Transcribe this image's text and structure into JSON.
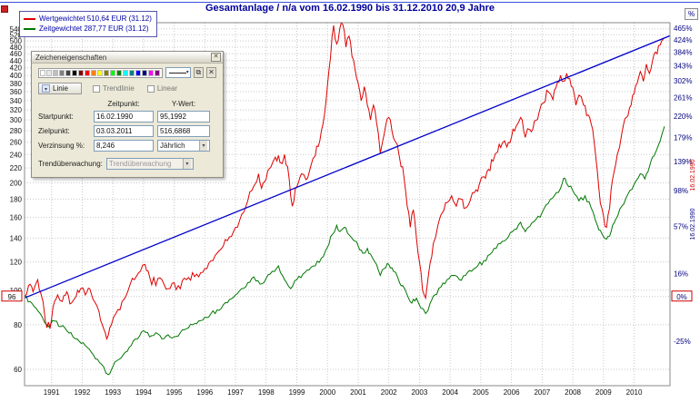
{
  "window": {
    "title": "Gesamtanlage / n/a vom 16.02.1990 bis 31.12.2010 20,9 Jahre"
  },
  "axis_toggle": "%",
  "legend": {
    "items": [
      {
        "label": "Wertgewichtet 510,64 EUR (31.12)",
        "color": "#dd0000"
      },
      {
        "label": "Zeitgewichtet 287,77 EUR (31.12)",
        "color": "#007700"
      }
    ]
  },
  "dialog": {
    "title": "Zeicheneigenschaften",
    "close_label": "✕",
    "copy_icon": "⧉",
    "delete_icon": "✕",
    "arrow": "▾",
    "line_type_label": "Linie",
    "trendline_label": "Trendlinie",
    "linear_label": "Linear",
    "col_time_label": "Zeitpunkt:",
    "col_value_label": "Y-Wert:",
    "start_label": "Startpunkt:",
    "start_date": "16.02.1990",
    "start_value": "95,1992",
    "end_label": "Zielpunkt:",
    "end_date": "03.03.2011",
    "end_value": "516,6868",
    "interest_label": "Verzinsung %:",
    "interest_value": "8,246",
    "interest_period": "Jährlich",
    "monitor_label": "Trendüberwachung:",
    "monitor_value": "Trendüberwachung",
    "swatches": [
      "#ffffff",
      "#e8e8e8",
      "#c0c0c0",
      "#808080",
      "#404040",
      "#000000",
      "#800000",
      "#ff0000",
      "#ff8000",
      "#ffff00",
      "#808000",
      "#00ff00",
      "#008000",
      "#00ffff",
      "#008080",
      "#0000ff",
      "#000080",
      "#ff00ff",
      "#800080"
    ]
  },
  "chart_data": {
    "type": "line",
    "scale_y": "log",
    "xlim": [
      1990.12,
      2011.17
    ],
    "ylim": [
      54,
      562
    ],
    "x_ticks": [
      1991,
      1992,
      1993,
      1994,
      1995,
      1996,
      1997,
      1998,
      1999,
      2000,
      2001,
      2002,
      2003,
      2004,
      2005,
      2006,
      2007,
      2008,
      2009,
      2010
    ],
    "y_ticks_left": [
      540,
      520,
      500,
      480,
      460,
      440,
      420,
      400,
      380,
      360,
      340,
      320,
      300,
      280,
      260,
      240,
      220,
      200,
      180,
      160,
      140,
      120,
      100,
      80,
      60
    ],
    "y_ticks_right_pct": [
      465,
      424,
      384,
      343,
      302,
      261,
      220,
      179,
      139,
      98,
      57,
      16,
      -25
    ],
    "base_value": 96,
    "base_left_label": "96",
    "base_right_label": "0%",
    "base_date_label": "16.02.1990",
    "grid": true,
    "series": [
      {
        "name": "Wertgewichtet",
        "color": "#dd0000",
        "end_value": "510,64",
        "jitter": 0.035,
        "points": [
          [
            1990.12,
            96
          ],
          [
            1990.25,
            103
          ],
          [
            1990.4,
            99
          ],
          [
            1990.55,
            107
          ],
          [
            1990.65,
            98
          ],
          [
            1990.8,
            82
          ],
          [
            1990.95,
            78
          ],
          [
            1991.05,
            90
          ],
          [
            1991.2,
            97
          ],
          [
            1991.35,
            93
          ],
          [
            1991.5,
            99
          ],
          [
            1991.65,
            92
          ],
          [
            1991.8,
            96
          ],
          [
            1991.95,
            101
          ],
          [
            1992.1,
            97
          ],
          [
            1992.25,
            101
          ],
          [
            1992.4,
            93
          ],
          [
            1992.55,
            87
          ],
          [
            1992.7,
            78
          ],
          [
            1992.8,
            73
          ],
          [
            1992.95,
            80
          ],
          [
            1993.1,
            86
          ],
          [
            1993.3,
            93
          ],
          [
            1993.5,
            100
          ],
          [
            1993.7,
            107
          ],
          [
            1993.9,
            113
          ],
          [
            1994.05,
            118
          ],
          [
            1994.2,
            109
          ],
          [
            1994.4,
            103
          ],
          [
            1994.6,
            107
          ],
          [
            1994.8,
            101
          ],
          [
            1995.0,
            105
          ],
          [
            1995.2,
            101
          ],
          [
            1995.4,
            107
          ],
          [
            1995.6,
            112
          ],
          [
            1995.8,
            109
          ],
          [
            1996.0,
            115
          ],
          [
            1996.2,
            121
          ],
          [
            1996.4,
            127
          ],
          [
            1996.6,
            133
          ],
          [
            1996.8,
            141
          ],
          [
            1997.0,
            150
          ],
          [
            1997.2,
            163
          ],
          [
            1997.4,
            178
          ],
          [
            1997.6,
            196
          ],
          [
            1997.75,
            212
          ],
          [
            1997.85,
            193
          ],
          [
            1998.0,
            205
          ],
          [
            1998.15,
            221
          ],
          [
            1998.3,
            236
          ],
          [
            1998.45,
            228
          ],
          [
            1998.6,
            240
          ],
          [
            1998.75,
            205
          ],
          [
            1998.85,
            172
          ],
          [
            1999.0,
            195
          ],
          [
            1999.15,
            212
          ],
          [
            1999.3,
            204
          ],
          [
            1999.45,
            222
          ],
          [
            1999.6,
            238
          ],
          [
            1999.75,
            262
          ],
          [
            1999.9,
            310
          ],
          [
            2000.0,
            375
          ],
          [
            2000.1,
            450
          ],
          [
            2000.2,
            552
          ],
          [
            2000.3,
            490
          ],
          [
            2000.4,
            540
          ],
          [
            2000.5,
            555
          ],
          [
            2000.6,
            480
          ],
          [
            2000.7,
            515
          ],
          [
            2000.8,
            452
          ],
          [
            2000.9,
            415
          ],
          [
            2001.0,
            380
          ],
          [
            2001.1,
            340
          ],
          [
            2001.2,
            372
          ],
          [
            2001.3,
            330
          ],
          [
            2001.4,
            300
          ],
          [
            2001.5,
            330
          ],
          [
            2001.6,
            295
          ],
          [
            2001.72,
            242
          ],
          [
            2001.8,
            262
          ],
          [
            2001.9,
            290
          ],
          [
            2002.0,
            305
          ],
          [
            2002.1,
            280
          ],
          [
            2002.2,
            262
          ],
          [
            2002.35,
            235
          ],
          [
            2002.5,
            205
          ],
          [
            2002.6,
            172
          ],
          [
            2002.7,
            150
          ],
          [
            2002.8,
            168
          ],
          [
            2002.9,
            140
          ],
          [
            2003.0,
            120
          ],
          [
            2003.1,
            100
          ],
          [
            2003.2,
            95
          ],
          [
            2003.3,
            112
          ],
          [
            2003.45,
            135
          ],
          [
            2003.6,
            152
          ],
          [
            2003.75,
            165
          ],
          [
            2003.9,
            176
          ],
          [
            2004.05,
            184
          ],
          [
            2004.2,
            172
          ],
          [
            2004.35,
            180
          ],
          [
            2004.5,
            170
          ],
          [
            2004.65,
            178
          ],
          [
            2004.8,
            188
          ],
          [
            2004.95,
            198
          ],
          [
            2005.1,
            208
          ],
          [
            2005.25,
            218
          ],
          [
            2005.4,
            230
          ],
          [
            2005.55,
            244
          ],
          [
            2005.7,
            258
          ],
          [
            2005.85,
            252
          ],
          [
            2006.0,
            268
          ],
          [
            2006.15,
            288
          ],
          [
            2006.3,
            305
          ],
          [
            2006.45,
            268
          ],
          [
            2006.6,
            282
          ],
          [
            2006.75,
            298
          ],
          [
            2006.9,
            315
          ],
          [
            2007.05,
            335
          ],
          [
            2007.2,
            360
          ],
          [
            2007.35,
            342
          ],
          [
            2007.5,
            382
          ],
          [
            2007.6,
            400
          ],
          [
            2007.7,
            385
          ],
          [
            2007.8,
            405
          ],
          [
            2007.9,
            392
          ],
          [
            2008.0,
            370
          ],
          [
            2008.1,
            330
          ],
          [
            2008.2,
            352
          ],
          [
            2008.35,
            330
          ],
          [
            2008.5,
            310
          ],
          [
            2008.65,
            282
          ],
          [
            2008.8,
            215
          ],
          [
            2008.9,
            175
          ],
          [
            2009.0,
            162
          ],
          [
            2009.1,
            150
          ],
          [
            2009.2,
            170
          ],
          [
            2009.3,
            205
          ],
          [
            2009.45,
            240
          ],
          [
            2009.6,
            275
          ],
          [
            2009.75,
            305
          ],
          [
            2009.9,
            330
          ],
          [
            2010.0,
            355
          ],
          [
            2010.1,
            380
          ],
          [
            2010.2,
            410
          ],
          [
            2010.3,
            385
          ],
          [
            2010.4,
            430
          ],
          [
            2010.5,
            405
          ],
          [
            2010.6,
            440
          ],
          [
            2010.7,
            465
          ],
          [
            2010.8,
            485
          ],
          [
            2010.9,
            500
          ],
          [
            2010.99,
            510.64
          ]
        ]
      },
      {
        "name": "Zeitgewichtet",
        "color": "#007700",
        "end_value": "287,77",
        "jitter": 0.016,
        "points": [
          [
            1990.12,
            96
          ],
          [
            1990.3,
            93
          ],
          [
            1990.5,
            89
          ],
          [
            1990.7,
            84
          ],
          [
            1990.9,
            79
          ],
          [
            1991.1,
            82
          ],
          [
            1991.3,
            79
          ],
          [
            1991.5,
            77
          ],
          [
            1991.7,
            74
          ],
          [
            1991.9,
            72
          ],
          [
            1992.1,
            70
          ],
          [
            1992.3,
            67
          ],
          [
            1992.5,
            64
          ],
          [
            1992.7,
            61
          ],
          [
            1992.85,
            58
          ],
          [
            1993.0,
            61
          ],
          [
            1993.2,
            64
          ],
          [
            1993.4,
            67
          ],
          [
            1993.6,
            70
          ],
          [
            1993.8,
            73
          ],
          [
            1994.0,
            77
          ],
          [
            1994.2,
            74
          ],
          [
            1994.4,
            76
          ],
          [
            1994.6,
            73
          ],
          [
            1994.8,
            75
          ],
          [
            1995.0,
            74
          ],
          [
            1995.2,
            76
          ],
          [
            1995.4,
            78
          ],
          [
            1995.6,
            80
          ],
          [
            1995.8,
            82
          ],
          [
            1996.0,
            84
          ],
          [
            1996.2,
            86
          ],
          [
            1996.4,
            88
          ],
          [
            1996.6,
            91
          ],
          [
            1996.8,
            94
          ],
          [
            1997.0,
            97
          ],
          [
            1997.2,
            101
          ],
          [
            1997.4,
            105
          ],
          [
            1997.6,
            109
          ],
          [
            1997.8,
            104
          ],
          [
            1998.0,
            108
          ],
          [
            1998.2,
            113
          ],
          [
            1998.4,
            117
          ],
          [
            1998.6,
            107
          ],
          [
            1998.8,
            101
          ],
          [
            1999.0,
            107
          ],
          [
            1999.2,
            111
          ],
          [
            1999.4,
            114
          ],
          [
            1999.6,
            117
          ],
          [
            1999.8,
            123
          ],
          [
            2000.0,
            132
          ],
          [
            2000.15,
            143
          ],
          [
            2000.3,
            152
          ],
          [
            2000.4,
            146
          ],
          [
            2000.55,
            150
          ],
          [
            2000.7,
            143
          ],
          [
            2000.85,
            138
          ],
          [
            2001.0,
            133
          ],
          [
            2001.15,
            127
          ],
          [
            2001.3,
            131
          ],
          [
            2001.45,
            124
          ],
          [
            2001.6,
            118
          ],
          [
            2001.72,
            110
          ],
          [
            2001.85,
            115
          ],
          [
            2002.0,
            118
          ],
          [
            2002.15,
            113
          ],
          [
            2002.3,
            108
          ],
          [
            2002.45,
            103
          ],
          [
            2002.6,
            97
          ],
          [
            2002.75,
            92
          ],
          [
            2002.9,
            95
          ],
          [
            2003.05,
            89
          ],
          [
            2003.2,
            86
          ],
          [
            2003.35,
            92
          ],
          [
            2003.5,
            97
          ],
          [
            2003.7,
            102
          ],
          [
            2003.9,
            107
          ],
          [
            2004.1,
            110
          ],
          [
            2004.3,
            107
          ],
          [
            2004.5,
            110
          ],
          [
            2004.7,
            113
          ],
          [
            2004.9,
            117
          ],
          [
            2005.1,
            121
          ],
          [
            2005.3,
            126
          ],
          [
            2005.5,
            131
          ],
          [
            2005.7,
            137
          ],
          [
            2005.9,
            141
          ],
          [
            2006.1,
            148
          ],
          [
            2006.3,
            155
          ],
          [
            2006.45,
            146
          ],
          [
            2006.6,
            151
          ],
          [
            2006.8,
            158
          ],
          [
            2007.0,
            165
          ],
          [
            2007.2,
            175
          ],
          [
            2007.4,
            184
          ],
          [
            2007.6,
            193
          ],
          [
            2007.7,
            206
          ],
          [
            2007.8,
            199
          ],
          [
            2008.0,
            190
          ],
          [
            2008.2,
            178
          ],
          [
            2008.4,
            184
          ],
          [
            2008.6,
            170
          ],
          [
            2008.8,
            152
          ],
          [
            2008.95,
            144
          ],
          [
            2009.1,
            139
          ],
          [
            2009.25,
            146
          ],
          [
            2009.4,
            158
          ],
          [
            2009.6,
            172
          ],
          [
            2009.8,
            186
          ],
          [
            2010.0,
            198
          ],
          [
            2010.2,
            212
          ],
          [
            2010.35,
            205
          ],
          [
            2010.5,
            222
          ],
          [
            2010.65,
            238
          ],
          [
            2010.8,
            256
          ],
          [
            2010.9,
            272
          ],
          [
            2010.99,
            287.77
          ]
        ]
      }
    ],
    "trend": {
      "name": "Trendlinie",
      "color": "#0000cc",
      "from": [
        1990.129,
        95.1992
      ],
      "to": [
        2011.17,
        516.6868
      ]
    }
  }
}
